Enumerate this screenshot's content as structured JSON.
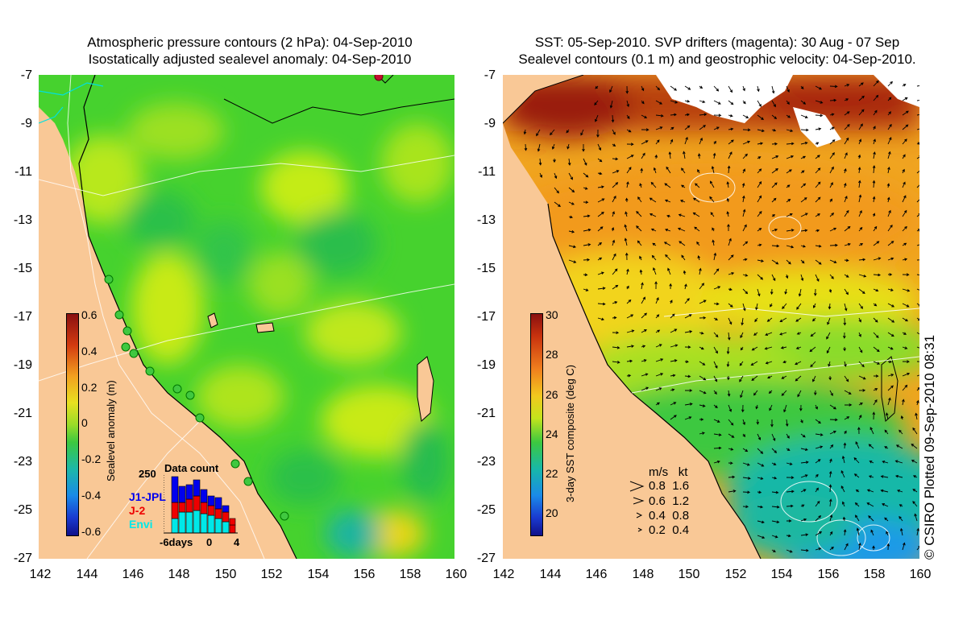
{
  "left_map": {
    "title_line1": "Atmospheric pressure contours (2 hPa): 04-Sep-2010",
    "title_line2": "Isostatically adjusted sealevel anomaly: 04-Sep-2010",
    "y_ticks": [
      "-7",
      "-9",
      "-11",
      "-13",
      "-15",
      "-17",
      "-19",
      "-21",
      "-23",
      "-25",
      "-27"
    ],
    "x_ticks": [
      "142",
      "144",
      "146",
      "148",
      "150",
      "152",
      "154",
      "156",
      "158",
      "160"
    ],
    "colorbar": {
      "label": "Sealevel anomaly (m)",
      "ticks": [
        "0.6",
        "0.4",
        "0.2",
        "0",
        "-0.2",
        "-0.4",
        "-0.6"
      ]
    },
    "data_count": {
      "title": "Data count",
      "ymax": "250",
      "sources": [
        {
          "name": "J1-JPL",
          "color": "#0000ee"
        },
        {
          "name": "J-2",
          "color": "#ee0000"
        },
        {
          "name": "Envi",
          "color": "#00e8e8"
        }
      ],
      "x_labels": [
        "-6days",
        "0",
        "4"
      ]
    }
  },
  "right_map": {
    "title_line1": "SST: 05-Sep-2010. SVP drifters (magenta): 30 Aug - 07 Sep",
    "title_line2": "Sealevel contours (0.1 m) and geostrophic velocity: 04-Sep-2010.",
    "y_ticks": [
      "-7",
      "-9",
      "-11",
      "-13",
      "-15",
      "-17",
      "-19",
      "-21",
      "-23",
      "-25",
      "-27"
    ],
    "x_ticks": [
      "142",
      "144",
      "146",
      "148",
      "150",
      "152",
      "154",
      "156",
      "158",
      "160"
    ],
    "colorbar": {
      "label": "3-day SST composite (deg C)",
      "ticks": [
        "30",
        "28",
        "26",
        "24",
        "22",
        "20"
      ]
    },
    "velocity_legend": {
      "header_ms": "m/s",
      "header_kt": "kt",
      "rows": [
        {
          "ms": "0.8",
          "kt": "1.6"
        },
        {
          "ms": "0.6",
          "kt": "1.2"
        },
        {
          "ms": "0.4",
          "kt": "0.8"
        },
        {
          "ms": "0.2",
          "kt": "0.4"
        }
      ]
    }
  },
  "credit": "© CSIRO Plotted 09-Sep-2010 08:31",
  "colors": {
    "land": "#f9c896",
    "sea_green": "#44d630",
    "sst_orange": "#f29a1e",
    "sst_red": "#a01a0a",
    "sst_blue": "#1a9ae8"
  }
}
